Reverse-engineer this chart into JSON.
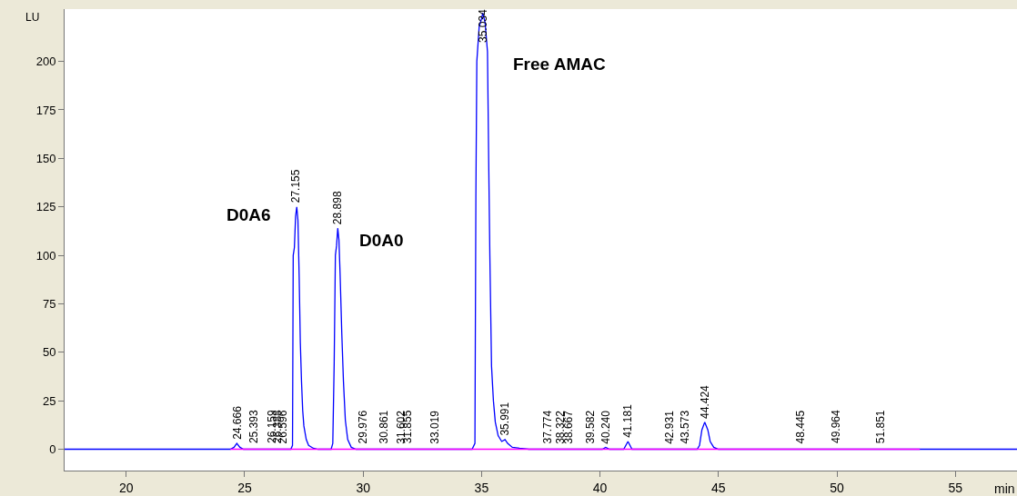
{
  "chart_data": {
    "type": "line",
    "xlabel": "min",
    "ylabel": "LU",
    "xlim": [
      17.4,
      57.6
    ],
    "xticks": [
      20,
      25,
      30,
      35,
      40,
      45,
      50,
      55
    ],
    "ylim": [
      -11,
      227
    ],
    "yticks": [
      0,
      25,
      50,
      75,
      100,
      125,
      150,
      175,
      200
    ],
    "grid": false,
    "marker": "none",
    "line_style": "solid",
    "series": [
      {
        "color": "#0000ff",
        "x": [
          17.4,
          24.4,
          24.55,
          24.67,
          24.8,
          24.95,
          26.95,
          27.02,
          27.05,
          27.1,
          27.15,
          27.2,
          27.25,
          27.3,
          27.35,
          27.4,
          27.45,
          27.5,
          27.6,
          27.7,
          27.9,
          28.1,
          28.65,
          28.72,
          28.78,
          28.83,
          28.88,
          28.93,
          28.98,
          29.03,
          29.1,
          29.17,
          29.25,
          29.35,
          29.5,
          29.7,
          34.6,
          34.72,
          34.76,
          34.8,
          34.9,
          35.0,
          35.05,
          35.15,
          35.25,
          35.3,
          35.35,
          35.42,
          35.5,
          35.58,
          35.7,
          35.85,
          35.99,
          36.1,
          36.3,
          36.6,
          37.0,
          40.1,
          40.24,
          40.4,
          41.0,
          41.18,
          41.35,
          44.1,
          44.2,
          44.3,
          44.42,
          44.55,
          44.65,
          44.8,
          45.0,
          57.6
        ],
        "values": [
          0,
          0,
          1,
          3,
          1,
          0,
          0,
          2,
          100,
          104,
          120,
          125,
          118,
          90,
          55,
          35,
          20,
          12,
          5,
          2,
          0.5,
          0,
          0,
          3,
          45,
          100,
          105,
          114,
          108,
          90,
          60,
          35,
          15,
          5,
          1,
          0,
          0,
          3,
          130,
          200,
          218,
          222,
          225,
          220,
          205,
          150,
          100,
          43,
          25,
          14,
          7,
          4,
          5,
          3,
          1,
          0.5,
          0,
          0,
          1,
          0,
          0,
          4,
          0,
          0,
          2,
          10,
          14,
          10,
          4,
          1,
          0,
          0
        ]
      },
      {
        "color": "#ff00ff",
        "x": [
          24.4,
          53.5
        ],
        "values": [
          0,
          0
        ]
      }
    ],
    "annotations": [
      "D0A6",
      "D0A0",
      "Free AMAC",
      {
        "text": "24.666",
        "x": 24.666,
        "y": 3
      },
      {
        "text": "25.393",
        "x": 25.393,
        "y": 1
      },
      {
        "text": "26.159",
        "x": 26.159,
        "y": 1
      },
      {
        "text": "26.388",
        "x": 26.388,
        "y": 1
      },
      {
        "text": "26.596",
        "x": 26.596,
        "y": 1
      },
      {
        "text": "27.155",
        "x": 27.155,
        "y": 125
      },
      {
        "text": "28.898",
        "x": 28.898,
        "y": 114
      },
      {
        "text": "29.976",
        "x": 29.976,
        "y": 1
      },
      {
        "text": "30.861",
        "x": 30.861,
        "y": 1
      },
      {
        "text": "31.602",
        "x": 31.602,
        "y": 1
      },
      {
        "text": "31.855",
        "x": 31.855,
        "y": 1
      },
      {
        "text": "33.019",
        "x": 33.019,
        "y": 1
      },
      {
        "text": "35.034",
        "x": 35.034,
        "y": 225
      },
      {
        "text": "35.991",
        "x": 35.991,
        "y": 5
      },
      {
        "text": "37.774",
        "x": 37.774,
        "y": 1
      },
      {
        "text": "38.322",
        "x": 38.322,
        "y": 1
      },
      {
        "text": "38.667",
        "x": 38.667,
        "y": 1
      },
      {
        "text": "39.582",
        "x": 39.582,
        "y": 1
      },
      {
        "text": "40.240",
        "x": 40.24,
        "y": 1
      },
      {
        "text": "41.181",
        "x": 41.181,
        "y": 4
      },
      {
        "text": "42.931",
        "x": 42.931,
        "y": 1
      },
      {
        "text": "43.573",
        "x": 43.573,
        "y": 1
      },
      {
        "text": "44.424",
        "x": 44.424,
        "y": 14
      },
      {
        "text": "48.445",
        "x": 48.445,
        "y": 1
      },
      {
        "text": "49.964",
        "x": 49.964,
        "y": 1
      },
      {
        "text": "51.851",
        "x": 51.851,
        "y": 1
      }
    ]
  }
}
